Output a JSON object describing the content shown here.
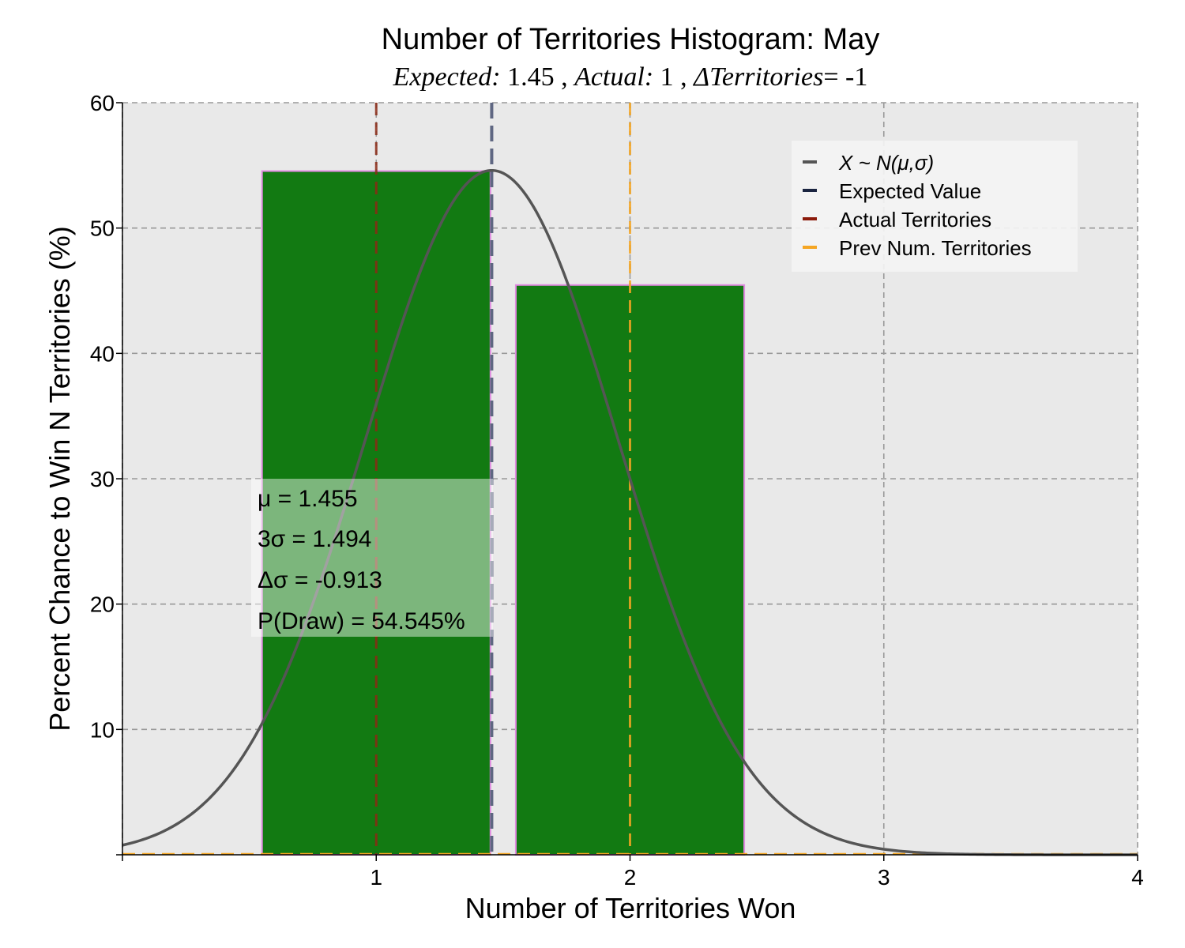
{
  "chart_data": {
    "type": "bar",
    "title": "Number of Territories Histogram: May",
    "subtitle": {
      "expected_label": "Expected:",
      "expected_value": "1.45",
      "actual_label": "Actual:",
      "actual_value": "1",
      "delta_label": "ΔTerritories",
      "delta_value": "= -1",
      "separator": " , "
    },
    "xlabel": "Number of Territories Won",
    "ylabel": "Percent Chance to Win N Territories (%)",
    "xlim": [
      0,
      4
    ],
    "ylim": [
      0,
      60
    ],
    "xticks": [
      1,
      2,
      3,
      4
    ],
    "yticks": [
      10,
      20,
      30,
      40,
      50,
      60
    ],
    "grid": true,
    "bars": [
      {
        "x": 1,
        "value": 54.545,
        "x_start": 0.55,
        "x_end": 1.45
      },
      {
        "x": 2,
        "value": 45.455,
        "x_start": 1.55,
        "x_end": 2.45
      }
    ],
    "normal_curve": {
      "mu": 1.455,
      "sigma": 0.498,
      "peak": 54.6
    },
    "lines": {
      "expected": 1.455,
      "actual": 1,
      "previous": 2
    },
    "legend": {
      "position": "top-right",
      "entries": [
        {
          "label": "X ~ N(μ,σ)",
          "color": "#555555"
        },
        {
          "label": "Expected Value",
          "color": "#1a2440"
        },
        {
          "label": "Actual Territories",
          "color": "#8b1a0a"
        },
        {
          "label": "Prev Num. Territories",
          "color": "#f5a623"
        }
      ]
    },
    "stats": {
      "mu_label": "μ = 1.455",
      "three_sigma_label": "3σ = 1.494",
      "delta_sigma_label": "Δσ = -0.913",
      "p_draw_label": "P(Draw) = 54.545%"
    },
    "colors": {
      "bar_fill": "#127a12",
      "bar_edge": "#e08be0",
      "background": "#e9e9e9",
      "grid": "#999999",
      "curve": "#555555",
      "expected": "#5f6782",
      "actual": "#8b2a15",
      "previous": "#f5a623",
      "stats_box": "#a8d5a8"
    }
  }
}
